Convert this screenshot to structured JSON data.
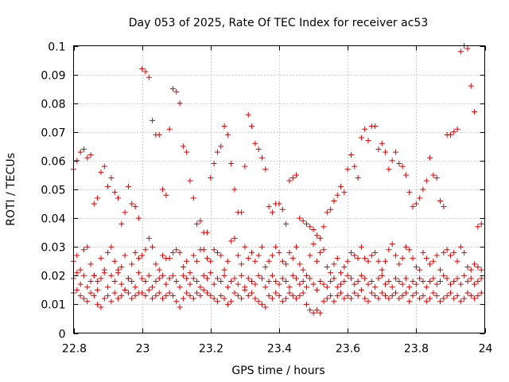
{
  "chart_data": {
    "type": "scatter",
    "title": "Day 053 of 2025, Rate Of TEC Index for receiver ac53",
    "xlabel": "GPS time / hours",
    "ylabel": "ROTI / TECUs",
    "xlim": [
      22.8,
      24
    ],
    "ylim": [
      0,
      0.1
    ],
    "xticks": [
      22.8,
      23,
      23.2,
      23.4,
      23.6,
      23.8,
      24
    ],
    "xtick_labels": [
      "22.8",
      "23",
      "23.2",
      "23.4",
      "23.6",
      "23.8",
      "24"
    ],
    "yticks": [
      0,
      0.01,
      0.02,
      0.03,
      0.04,
      0.05,
      0.06,
      0.07,
      0.08,
      0.09,
      0.1
    ],
    "ytick_labels": [
      "0",
      "0.01",
      "0.02",
      "0.03",
      "0.04",
      "0.05",
      "0.06",
      "0.07",
      "0.08",
      "0.09",
      "0.1"
    ],
    "grid": true,
    "legend": "none",
    "marker": "+",
    "color": "#e00000",
    "series": [
      {
        "x": [
          22.8,
          22.81,
          22.82,
          22.83,
          22.84,
          22.85,
          22.86,
          22.87,
          22.88,
          22.89,
          22.9,
          22.91,
          22.92,
          22.93,
          22.94,
          22.95,
          22.96,
          22.97,
          22.98,
          22.99,
          23.0,
          23.01,
          23.02,
          23.03,
          23.04,
          23.05,
          23.06,
          23.07,
          23.08,
          23.09,
          23.1,
          23.11,
          23.12,
          23.13,
          23.14,
          23.15,
          23.16,
          23.17,
          23.18,
          23.19,
          23.2,
          23.21,
          23.22,
          23.23,
          23.24,
          23.25,
          23.26,
          23.27,
          23.28,
          23.29,
          23.3,
          23.31,
          23.32,
          23.33,
          23.34,
          23.35,
          23.36,
          23.37,
          23.38,
          23.39,
          23.4,
          23.41,
          23.42,
          23.43,
          23.44,
          23.45,
          23.46,
          23.47,
          23.48,
          23.49,
          23.5,
          23.51,
          23.52,
          23.53,
          23.54,
          23.55,
          23.56,
          23.57,
          23.58,
          23.59,
          23.6,
          23.61,
          23.62,
          23.63,
          23.64,
          23.65,
          23.66,
          23.67,
          23.68,
          23.69,
          23.7,
          23.71,
          23.72,
          23.73,
          23.74,
          23.75,
          23.76,
          23.77,
          23.78,
          23.79,
          23.8,
          23.81,
          23.82,
          23.83,
          23.84,
          23.85,
          23.86,
          23.87,
          23.88,
          23.89,
          23.9,
          23.91,
          23.92,
          23.93,
          23.94,
          23.95,
          23.96,
          23.97,
          23.98,
          23.99
        ],
        "y": [
          0.057,
          0.06,
          0.063,
          0.064,
          0.061,
          0.062,
          0.045,
          0.047,
          0.056,
          0.058,
          0.051,
          0.054,
          0.049,
          0.047,
          0.038,
          0.042,
          0.051,
          0.045,
          0.044,
          0.04,
          0.092,
          0.091,
          0.089,
          0.074,
          0.069,
          0.069,
          0.05,
          0.048,
          0.071,
          0.085,
          0.084,
          0.08,
          0.065,
          0.063,
          0.053,
          0.047,
          0.038,
          0.039,
          0.035,
          0.035,
          0.054,
          0.059,
          0.063,
          0.065,
          0.072,
          0.069,
          0.059,
          0.05,
          0.042,
          0.042,
          0.058,
          0.076,
          0.072,
          0.066,
          0.064,
          0.061,
          0.057,
          0.044,
          0.042,
          0.045,
          0.045,
          0.043,
          0.038,
          0.053,
          0.054,
          0.055,
          0.04,
          0.039,
          0.038,
          0.037,
          0.036,
          0.034,
          0.033,
          0.037,
          0.042,
          0.043,
          0.046,
          0.048,
          0.051,
          0.049,
          0.057,
          0.062,
          0.058,
          0.054,
          0.068,
          0.071,
          0.067,
          0.072,
          0.072,
          0.064,
          0.066,
          0.063,
          0.057,
          0.06,
          0.063,
          0.059,
          0.058,
          0.055,
          0.049,
          0.044,
          0.045,
          0.047,
          0.05,
          0.053,
          0.061,
          0.055,
          0.054,
          0.046,
          0.044,
          0.069,
          0.069,
          0.07,
          0.071,
          0.098,
          0.1,
          0.099,
          0.086,
          0.077,
          0.037,
          0.038
        ]
      },
      {
        "x": [
          22.8,
          22.81,
          22.82,
          22.83,
          22.84,
          22.85,
          22.86,
          22.87,
          22.88,
          22.89,
          22.9,
          22.91,
          22.92,
          22.93,
          22.94,
          22.95,
          22.96,
          22.97,
          22.98,
          22.99,
          23.0,
          23.01,
          23.02,
          23.03,
          23.04,
          23.05,
          23.06,
          23.07,
          23.08,
          23.09,
          23.1,
          23.11,
          23.12,
          23.13,
          23.14,
          23.15,
          23.16,
          23.17,
          23.18,
          23.19,
          23.2,
          23.21,
          23.22,
          23.23,
          23.24,
          23.25,
          23.26,
          23.27,
          23.28,
          23.29,
          23.3,
          23.31,
          23.32,
          23.33,
          23.34,
          23.35,
          23.36,
          23.37,
          23.38,
          23.39,
          23.4,
          23.41,
          23.42,
          23.43,
          23.44,
          23.45,
          23.46,
          23.47,
          23.48,
          23.49,
          23.5,
          23.51,
          23.52,
          23.53,
          23.54,
          23.55,
          23.56,
          23.57,
          23.58,
          23.59,
          23.6,
          23.61,
          23.62,
          23.63,
          23.64,
          23.65,
          23.66,
          23.67,
          23.68,
          23.69,
          23.7,
          23.71,
          23.72,
          23.73,
          23.74,
          23.75,
          23.76,
          23.77,
          23.78,
          23.79,
          23.8,
          23.81,
          23.82,
          23.83,
          23.84,
          23.85,
          23.86,
          23.87,
          23.88,
          23.89,
          23.9,
          23.91,
          23.92,
          23.93,
          23.94,
          23.95,
          23.96,
          23.97,
          23.98,
          23.99
        ],
        "y": [
          0.025,
          0.027,
          0.022,
          0.029,
          0.03,
          0.024,
          0.02,
          0.018,
          0.026,
          0.022,
          0.028,
          0.03,
          0.025,
          0.021,
          0.023,
          0.027,
          0.019,
          0.024,
          0.028,
          0.026,
          0.027,
          0.029,
          0.033,
          0.03,
          0.024,
          0.022,
          0.027,
          0.026,
          0.026,
          0.028,
          0.029,
          0.028,
          0.023,
          0.025,
          0.021,
          0.027,
          0.025,
          0.029,
          0.029,
          0.026,
          0.025,
          0.029,
          0.028,
          0.027,
          0.022,
          0.025,
          0.032,
          0.033,
          0.027,
          0.024,
          0.03,
          0.026,
          0.028,
          0.025,
          0.027,
          0.03,
          0.023,
          0.025,
          0.027,
          0.03,
          0.028,
          0.025,
          0.024,
          0.028,
          0.026,
          0.03,
          0.024,
          0.022,
          0.02,
          0.027,
          0.031,
          0.025,
          0.028,
          0.029,
          0.023,
          0.021,
          0.024,
          0.026,
          0.021,
          0.023,
          0.025,
          0.028,
          0.027,
          0.026,
          0.03,
          0.026,
          0.025,
          0.027,
          0.028,
          0.025,
          0.022,
          0.025,
          0.029,
          0.031,
          0.027,
          0.024,
          0.026,
          0.03,
          0.029,
          0.026,
          0.023,
          0.022,
          0.028,
          0.026,
          0.024,
          0.025,
          0.027,
          0.022,
          0.028,
          0.029,
          0.027,
          0.028,
          0.025,
          0.03,
          0.028,
          0.023,
          0.022,
          0.024,
          0.023,
          0.022
        ]
      },
      {
        "x": [
          22.8,
          22.81,
          22.82,
          22.83,
          22.84,
          22.85,
          22.86,
          22.87,
          22.88,
          22.89,
          22.9,
          22.91,
          22.92,
          22.93,
          22.94,
          22.95,
          22.96,
          22.97,
          22.98,
          22.99,
          23.0,
          23.01,
          23.02,
          23.03,
          23.04,
          23.05,
          23.06,
          23.07,
          23.08,
          23.09,
          23.1,
          23.11,
          23.12,
          23.13,
          23.14,
          23.15,
          23.16,
          23.17,
          23.18,
          23.19,
          23.2,
          23.21,
          23.22,
          23.23,
          23.24,
          23.25,
          23.26,
          23.27,
          23.28,
          23.29,
          23.3,
          23.31,
          23.32,
          23.33,
          23.34,
          23.35,
          23.36,
          23.37,
          23.38,
          23.39,
          23.4,
          23.41,
          23.42,
          23.43,
          23.44,
          23.45,
          23.46,
          23.47,
          23.48,
          23.49,
          23.5,
          23.51,
          23.52,
          23.53,
          23.54,
          23.55,
          23.56,
          23.57,
          23.58,
          23.59,
          23.6,
          23.61,
          23.62,
          23.63,
          23.64,
          23.65,
          23.66,
          23.67,
          23.68,
          23.69,
          23.7,
          23.71,
          23.72,
          23.73,
          23.74,
          23.75,
          23.76,
          23.77,
          23.78,
          23.79,
          23.8,
          23.81,
          23.82,
          23.83,
          23.84,
          23.85,
          23.86,
          23.87,
          23.88,
          23.89,
          23.9,
          23.91,
          23.92,
          23.93,
          23.94,
          23.95,
          23.96,
          23.97,
          23.98,
          23.99
        ],
        "y": [
          0.019,
          0.021,
          0.017,
          0.02,
          0.016,
          0.018,
          0.02,
          0.015,
          0.019,
          0.021,
          0.016,
          0.02,
          0.018,
          0.022,
          0.017,
          0.015,
          0.019,
          0.018,
          0.016,
          0.021,
          0.019,
          0.018,
          0.02,
          0.016,
          0.018,
          0.019,
          0.02,
          0.017,
          0.019,
          0.02,
          0.018,
          0.016,
          0.02,
          0.019,
          0.017,
          0.019,
          0.018,
          0.016,
          0.02,
          0.019,
          0.021,
          0.017,
          0.019,
          0.018,
          0.02,
          0.016,
          0.018,
          0.019,
          0.017,
          0.02,
          0.016,
          0.019,
          0.018,
          0.017,
          0.02,
          0.019,
          0.016,
          0.018,
          0.02,
          0.018,
          0.017,
          0.019,
          0.018,
          0.016,
          0.02,
          0.019,
          0.017,
          0.018,
          0.016,
          0.019,
          0.017,
          0.015,
          0.018,
          0.017,
          0.016,
          0.018,
          0.019,
          0.016,
          0.017,
          0.018,
          0.02,
          0.019,
          0.017,
          0.018,
          0.02,
          0.019,
          0.017,
          0.018,
          0.016,
          0.019,
          0.02,
          0.017,
          0.018,
          0.016,
          0.019,
          0.018,
          0.017,
          0.019,
          0.016,
          0.018,
          0.017,
          0.019,
          0.018,
          0.016,
          0.018,
          0.019,
          0.017,
          0.018,
          0.02,
          0.019,
          0.017,
          0.018,
          0.019,
          0.017,
          0.02,
          0.018,
          0.019,
          0.017,
          0.018,
          0.019
        ]
      },
      {
        "x": [
          22.8,
          22.81,
          22.82,
          22.83,
          22.84,
          22.85,
          22.86,
          22.87,
          22.88,
          22.89,
          22.9,
          22.91,
          22.92,
          22.93,
          22.94,
          22.95,
          22.96,
          22.97,
          22.98,
          22.99,
          23.0,
          23.01,
          23.02,
          23.03,
          23.04,
          23.05,
          23.06,
          23.07,
          23.08,
          23.09,
          23.1,
          23.11,
          23.12,
          23.13,
          23.14,
          23.15,
          23.16,
          23.17,
          23.18,
          23.19,
          23.2,
          23.21,
          23.22,
          23.23,
          23.24,
          23.25,
          23.26,
          23.27,
          23.28,
          23.29,
          23.3,
          23.31,
          23.32,
          23.33,
          23.34,
          23.35,
          23.36,
          23.37,
          23.38,
          23.39,
          23.4,
          23.41,
          23.42,
          23.43,
          23.44,
          23.45,
          23.46,
          23.47,
          23.48,
          23.49,
          23.5,
          23.51,
          23.52,
          23.53,
          23.54,
          23.55,
          23.56,
          23.57,
          23.58,
          23.59,
          23.6,
          23.61,
          23.62,
          23.63,
          23.64,
          23.65,
          23.66,
          23.67,
          23.68,
          23.69,
          23.7,
          23.71,
          23.72,
          23.73,
          23.74,
          23.75,
          23.76,
          23.77,
          23.78,
          23.79,
          23.8,
          23.81,
          23.82,
          23.83,
          23.84,
          23.85,
          23.86,
          23.87,
          23.88,
          23.89,
          23.9,
          23.91,
          23.92,
          23.93,
          23.94,
          23.95,
          23.96,
          23.97,
          23.98,
          23.99
        ],
        "y": [
          0.014,
          0.015,
          0.013,
          0.012,
          0.011,
          0.014,
          0.013,
          0.01,
          0.009,
          0.012,
          0.013,
          0.011,
          0.014,
          0.012,
          0.013,
          0.015,
          0.014,
          0.012,
          0.013,
          0.014,
          0.014,
          0.013,
          0.015,
          0.012,
          0.013,
          0.014,
          0.012,
          0.013,
          0.014,
          0.013,
          0.011,
          0.009,
          0.012,
          0.014,
          0.013,
          0.012,
          0.014,
          0.013,
          0.015,
          0.014,
          0.013,
          0.012,
          0.011,
          0.013,
          0.012,
          0.01,
          0.011,
          0.014,
          0.013,
          0.012,
          0.015,
          0.013,
          0.014,
          0.012,
          0.011,
          0.01,
          0.009,
          0.013,
          0.012,
          0.014,
          0.013,
          0.011,
          0.012,
          0.014,
          0.013,
          0.012,
          0.013,
          0.014,
          0.01,
          0.008,
          0.007,
          0.008,
          0.007,
          0.011,
          0.012,
          0.013,
          0.011,
          0.013,
          0.014,
          0.012,
          0.013,
          0.012,
          0.014,
          0.013,
          0.015,
          0.012,
          0.011,
          0.014,
          0.013,
          0.012,
          0.014,
          0.013,
          0.012,
          0.013,
          0.014,
          0.012,
          0.013,
          0.014,
          0.011,
          0.013,
          0.014,
          0.012,
          0.013,
          0.011,
          0.012,
          0.014,
          0.013,
          0.011,
          0.012,
          0.013,
          0.014,
          0.012,
          0.013,
          0.011,
          0.012,
          0.014,
          0.013,
          0.012,
          0.013,
          0.014
        ]
      }
    ]
  }
}
